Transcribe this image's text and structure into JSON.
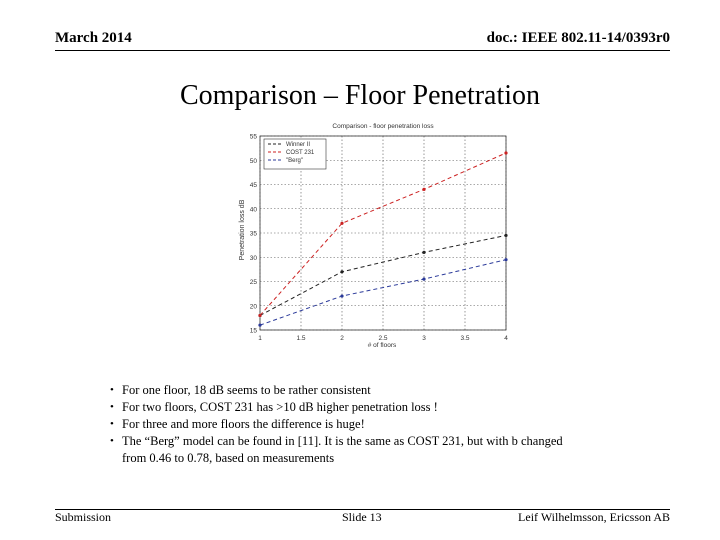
{
  "header": {
    "date": "March 2014",
    "doc": "doc.: IEEE 802.11-14/0393r0"
  },
  "title": "Comparison – Floor Penetration",
  "chart_data": {
    "type": "line",
    "title": "Comparison - floor penetration loss",
    "xlabel": "# of floors",
    "ylabel": "Penetration loss dB",
    "xlim": [
      1,
      4
    ],
    "ylim": [
      15,
      55
    ],
    "xticks": [
      1,
      1.5,
      2,
      2.5,
      3,
      3.5,
      4
    ],
    "xtick_labels": [
      "1",
      "1.5",
      "2",
      "2.5",
      "3",
      "3.5",
      "4"
    ],
    "yticks": [
      15,
      20,
      25,
      30,
      35,
      40,
      45,
      50,
      55
    ],
    "grid": true,
    "legend": "top-left",
    "series": [
      {
        "name": "Winner II",
        "color": "#222222",
        "x": [
          1,
          2,
          3,
          4
        ],
        "y": [
          18,
          27,
          31,
          34.5
        ]
      },
      {
        "name": "COST 231",
        "color": "#cc2222",
        "x": [
          1,
          2,
          3,
          4
        ],
        "y": [
          18,
          37,
          44,
          51.5
        ]
      },
      {
        "name": "\"Berg\"",
        "color": "#2b3a9a",
        "x": [
          1,
          2,
          3,
          4
        ],
        "y": [
          16,
          22,
          25.5,
          29.5
        ]
      }
    ]
  },
  "bullets": [
    "For one floor, 18 dB seems to be rather consistent",
    "For two floors, COST 231 has >10 dB higher penetration loss !",
    "For three and more floors the difference is huge!",
    "The “Berg” model can be found in [11]. It is the same as COST 231, but with b changed from 0.46 to 0.78, based on measurements"
  ],
  "footer": {
    "left": "Submission",
    "middle": "Slide 13",
    "right": "Leif Wilhelmsson, Ericsson AB"
  }
}
